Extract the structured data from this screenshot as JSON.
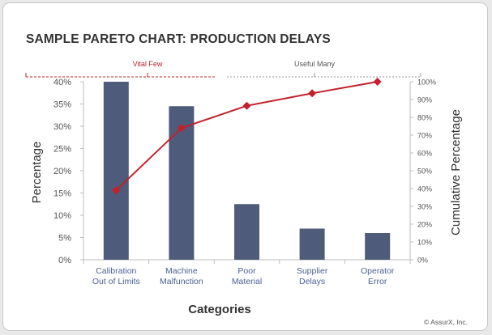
{
  "chart_data": {
    "type": "bar",
    "title": "SAMPLE PARETO CHART: PRODUCTION DELAYS",
    "xlabel": "Categories",
    "ylabel": "Percentage",
    "y2label": "Cumulative Percentage",
    "categories": [
      [
        "Calibration",
        "Out of Limits"
      ],
      [
        "Machine",
        "Malfunction"
      ],
      [
        "Poor",
        "Material"
      ],
      [
        "Supplier",
        "Delays"
      ],
      [
        "Operator",
        "Error"
      ]
    ],
    "ylim": [
      0,
      40
    ],
    "y_ticks": [
      "0%",
      "5%",
      "10%",
      "15%",
      "20%",
      "25%",
      "30%",
      "35%",
      "40%"
    ],
    "y2lim": [
      0,
      100
    ],
    "y2_ticks": [
      "0%",
      "10%",
      "20%",
      "30%",
      "40%",
      "50%",
      "60%",
      "70%",
      "80%",
      "90%",
      "100%"
    ],
    "series": [
      {
        "type": "bar",
        "values": [
          40,
          34.5,
          12.5,
          7,
          6
        ],
        "color": "#4f5b7a"
      },
      {
        "type": "line",
        "axis": "right",
        "values": [
          39,
          74,
          86.5,
          93.5,
          100
        ],
        "color": "#c4202b"
      }
    ],
    "groups": [
      {
        "label": "Vital Few",
        "color": "#c4202b"
      },
      {
        "label": "Useful Many",
        "color": "#555555"
      }
    ],
    "grid": false
  },
  "copyright": "© AssurX, Inc."
}
